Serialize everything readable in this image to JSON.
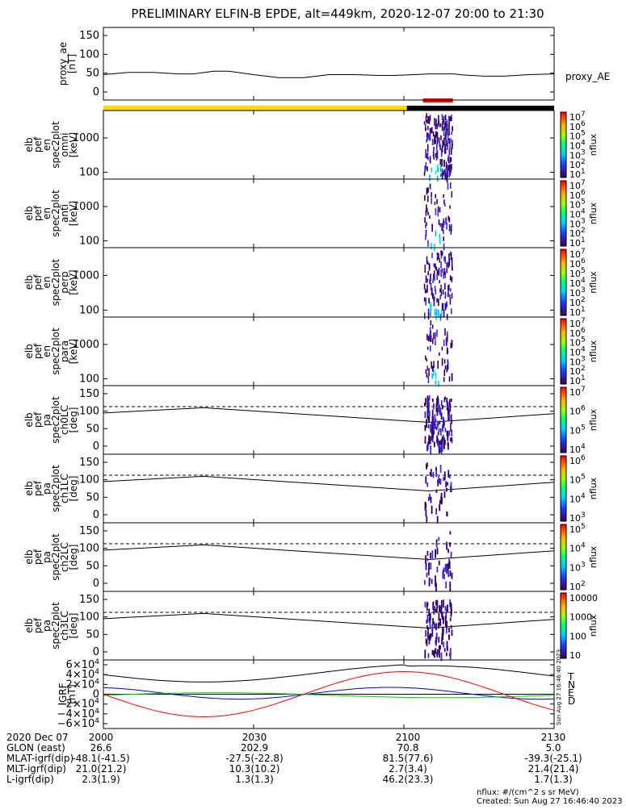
{
  "title": "PRELIMINARY ELFIN-B EPDE, alt=449km, 2020-12-07 20:00 to 21:30",
  "chart_data": {
    "type": "line",
    "panels": [
      {
        "id": "proxy-ae",
        "ylabel": [
          "proxy_ae",
          "[nT]"
        ],
        "ticks": [
          "150",
          "100",
          "50",
          "0"
        ],
        "legend": "proxy_AE",
        "series": [
          {
            "name": "proxy_AE",
            "x": [
              0,
              5,
              10,
              15,
              18,
              22,
              25,
              30,
              35,
              40,
              45,
              50,
              55,
              58,
              62,
              65,
              70,
              72,
              76,
              80,
              85,
              90
            ],
            "y": [
              46,
              52,
              52,
              48,
              48,
              55,
              55,
              46,
              38,
              38,
              46,
              46,
              44,
              44,
              46,
              48,
              48,
              45,
              42,
              42,
              46,
              48
            ]
          }
        ]
      },
      {
        "id": "spec-omni",
        "ylabel": [
          "elb",
          "pef",
          "en",
          "spec2plot",
          "omni",
          "[keV]"
        ],
        "ticks": [
          "1000",
          "100"
        ],
        "cblabel": "nflux",
        "cbticks": [
          "10⁷",
          "10⁶",
          "10⁵",
          "10⁴",
          "10³",
          "10²",
          "10¹"
        ]
      },
      {
        "id": "spec-anti",
        "ylabel": [
          "elb",
          "pef",
          "en",
          "spec2plot",
          "anti",
          "[keV]"
        ],
        "ticks": [
          "1000",
          "100"
        ],
        "cblabel": "nflux",
        "cbticks": [
          "10⁷",
          "10⁶",
          "10⁵",
          "10⁴",
          "10³",
          "10²",
          "10¹"
        ]
      },
      {
        "id": "spec-perp",
        "ylabel": [
          "elb",
          "pef",
          "en",
          "spec2plot",
          "perp",
          "[keV]"
        ],
        "ticks": [
          "1000",
          "100"
        ],
        "cblabel": "nflux",
        "cbticks": [
          "10⁷",
          "10⁶",
          "10⁵",
          "10⁴",
          "10³",
          "10²",
          "10¹"
        ]
      },
      {
        "id": "spec-para",
        "ylabel": [
          "elb",
          "pef",
          "en",
          "spec2plot",
          "para",
          "[keV]"
        ],
        "ticks": [
          "1000",
          "100"
        ],
        "cblabel": "nflux",
        "cbticks": [
          "10⁷",
          "10⁶",
          "10⁵",
          "10⁴",
          "10³",
          "10²",
          "10¹"
        ]
      },
      {
        "id": "pa-ch0",
        "ylabel": [
          "elb",
          "pef",
          "pa",
          "spec2plot",
          "ch0LC",
          "[deg]"
        ],
        "ticks": [
          "150",
          "100",
          "50",
          "0"
        ],
        "cblabel": "nflux",
        "cbticks": [
          "10⁷",
          "10⁶",
          "10⁵",
          "10⁴"
        ]
      },
      {
        "id": "pa-ch1",
        "ylabel": [
          "elb",
          "pef",
          "pa",
          "spec2plot",
          "ch1LC",
          "[deg]"
        ],
        "ticks": [
          "150",
          "100",
          "50",
          "0"
        ],
        "cblabel": "nflux",
        "cbticks": [
          "10⁶",
          "10⁵",
          "10⁴",
          "10³"
        ]
      },
      {
        "id": "pa-ch2",
        "ylabel": [
          "elb",
          "pef",
          "pa",
          "spec2plot",
          "ch2LC",
          "[deg]"
        ],
        "ticks": [
          "150",
          "100",
          "50",
          "0"
        ],
        "cblabel": "nflux",
        "cbticks": [
          "10⁵",
          "10⁴",
          "10³",
          "10²"
        ]
      },
      {
        "id": "pa-ch3",
        "ylabel": [
          "elb",
          "pef",
          "pa",
          "spec2plot",
          "ch3LC",
          "[deg]"
        ],
        "ticks": [
          "150",
          "100",
          "50",
          "0"
        ],
        "cblabel": "nflux",
        "cbticks": [
          "10000",
          "1000",
          "100",
          "10"
        ]
      },
      {
        "id": "igrf",
        "ylabel": [
          "IGRF",
          "[nT]"
        ],
        "ticks": [
          "6×10⁴",
          "4×10⁴",
          "2×10⁴",
          "0",
          "−2×10⁴",
          "−4×10⁴",
          "−6×10⁴"
        ],
        "legend": [
          "T",
          "N",
          "E",
          "D"
        ],
        "legend_colors": [
          "#000000",
          "#0000ff",
          "#00cc00",
          "#ff0000"
        ],
        "stamp": "Sun Aug 27 16:46:40 2023"
      }
    ],
    "pa_lines": {
      "losscone_dashed": [
        113,
        113
      ],
      "solid_range": [
        95,
        68
      ]
    },
    "x_ticks": [
      "2000",
      "2030",
      "2100",
      "2130"
    ],
    "x_minutes": [
      0,
      30,
      60,
      90
    ],
    "xrange_minutes": [
      0,
      90
    ]
  },
  "footer": {
    "rows": [
      {
        "label": "2020 Dec 07",
        "values": [
          "2000",
          "2030",
          "2100",
          "2130"
        ]
      },
      {
        "label": "GLON (east)",
        "values": [
          "26.6",
          "202.9",
          "70.8",
          "5.0"
        ]
      },
      {
        "label": "MLAT-igrf(dip)",
        "values": [
          "-48.1(-41.5)",
          "-27.5(-22.8)",
          "81.5(77.6)",
          "-39.3(-25.1)"
        ]
      },
      {
        "label": "MLT-igrf(dip)",
        "values": [
          "21.0(21.2)",
          "10.3(10.2)",
          "2.7(3.4)",
          "21.4(21.4)"
        ]
      },
      {
        "label": "L-igrf(dip)",
        "values": [
          "2.3(1.9)",
          "1.3(1.3)",
          "46.2(23.3)",
          "1.7(1.3)"
        ]
      }
    ],
    "units": "nflux: #/(cm^2 s sr MeV)",
    "created": "Created: Sun Aug 27 16:46:40 2023"
  },
  "colors": {
    "yellow_bar": "#ffd700",
    "black_bar": "#000000",
    "red_bar": "#ff0000"
  }
}
